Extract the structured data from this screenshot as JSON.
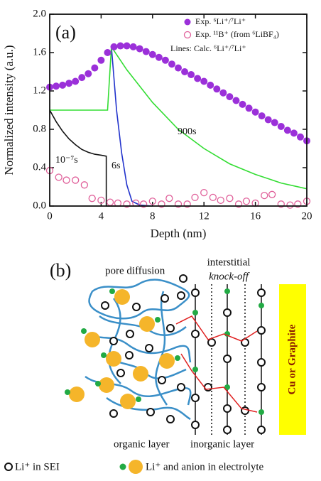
{
  "chart_data": {
    "type": "scatter",
    "panel_label": "(a)",
    "x_label": "Depth (nm)",
    "y_label": "Normalized intensity (a.u.)",
    "xlim": [
      0,
      20
    ],
    "ylim": [
      0,
      2.0
    ],
    "xticks": [
      0,
      4,
      8,
      12,
      16,
      20
    ],
    "yticks": [
      {
        "value": 0,
        "label": "0.0"
      },
      0.4,
      0.8,
      1.2,
      1.6,
      {
        "value": 2,
        "label": "2.0"
      }
    ],
    "legend_note": "Lines: Calc. ⁶Li⁺/⁷Li⁺",
    "series": [
      {
        "name": "Exp. ⁶Li⁺/⁷Li⁺",
        "type": "scatter",
        "marker": "filled",
        "color": "#9b30d9",
        "x": [
          0,
          0.5,
          1,
          1.5,
          2,
          2.5,
          3,
          3.5,
          4,
          4.5,
          5,
          5.5,
          6,
          6.5,
          7,
          7.5,
          8,
          8.5,
          9,
          9.5,
          10,
          10.5,
          11,
          11.5,
          12,
          12.5,
          13,
          13.5,
          14,
          14.5,
          15,
          15.5,
          16,
          16.5,
          17,
          17.5,
          18,
          18.5,
          19,
          19.5,
          20
        ],
        "values": [
          1.24,
          1.25,
          1.26,
          1.28,
          1.3,
          1.34,
          1.38,
          1.44,
          1.52,
          1.6,
          1.66,
          1.67,
          1.67,
          1.66,
          1.64,
          1.61,
          1.58,
          1.55,
          1.52,
          1.48,
          1.44,
          1.4,
          1.37,
          1.33,
          1.3,
          1.26,
          1.22,
          1.18,
          1.14,
          1.1,
          1.06,
          1.02,
          0.98,
          0.94,
          0.9,
          0.87,
          0.83,
          0.79,
          0.76,
          0.72,
          0.68
        ]
      },
      {
        "name": "Exp. ¹¹B⁺ (from ⁶LiBF₄)",
        "type": "scatter",
        "marker": "open",
        "color": "#e0609a",
        "x": [
          0,
          0.7,
          1.3,
          2,
          2.7,
          3.3,
          4,
          4.7,
          5.3,
          6,
          6.7,
          7.3,
          8,
          8.7,
          9.3,
          10,
          10.7,
          11.3,
          12,
          12.7,
          13.3,
          14,
          14.7,
          15.3,
          16,
          16.7,
          17.3,
          18,
          18.7,
          19.3,
          20
        ],
        "values": [
          0.37,
          0.3,
          0.27,
          0.27,
          0.22,
          0.08,
          0.06,
          0.04,
          0.03,
          0.02,
          0.03,
          0.02,
          0.05,
          0.02,
          0.08,
          0.02,
          0.02,
          0.09,
          0.14,
          0.09,
          0.06,
          0.08,
          0.02,
          0.05,
          0.03,
          0.11,
          0.12,
          0.02,
          0.01,
          0.02,
          0.05
        ]
      },
      {
        "name": "10⁻⁷s",
        "type": "line",
        "color": "#111111",
        "x": [
          0,
          0.5,
          1,
          1.5,
          2,
          2.5,
          3,
          3.5,
          4,
          4.4,
          4.4,
          8
        ],
        "values": [
          1.0,
          0.88,
          0.78,
          0.7,
          0.64,
          0.59,
          0.56,
          0.54,
          0.53,
          0.52,
          0,
          0
        ]
      },
      {
        "name": "6s",
        "type": "line",
        "color": "#2233cc",
        "x": [
          4.8,
          5.2,
          5.6,
          6.0,
          6.4,
          7,
          8
        ],
        "values": [
          1.66,
          1.0,
          0.55,
          0.22,
          0.05,
          0.01,
          0
        ]
      },
      {
        "name": "900s",
        "type": "line",
        "color": "#33dd33",
        "x": [
          0,
          4.5,
          4.8,
          6,
          8,
          10,
          12,
          14,
          16,
          18,
          20
        ],
        "values": [
          1.0,
          1.0,
          1.66,
          1.42,
          1.08,
          0.8,
          0.6,
          0.44,
          0.33,
          0.24,
          0.18
        ]
      }
    ]
  },
  "diagram": {
    "panel_label": "(b)",
    "pore_label": "pore diffusion",
    "interstitial_label": "interstitial",
    "knockoff_label": "knock-off",
    "substrate_label": "Cu or Graphite",
    "organic_label": "organic layer",
    "inorganic_label": "inorganic layer",
    "legend": [
      "Li⁺ in SEI",
      "Li⁺ and anion in electrolyte"
    ]
  }
}
